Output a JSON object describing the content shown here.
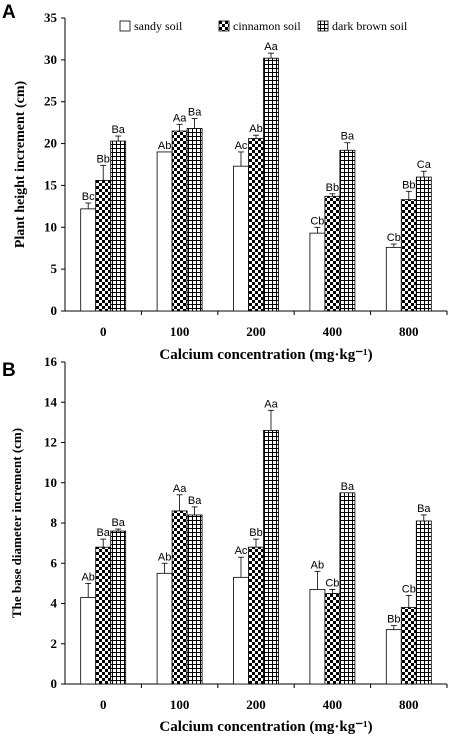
{
  "chart_data": [
    {
      "panel": "A",
      "type": "bar",
      "xlabel": "Calcium concentration (mg·kg⁻¹)",
      "ylabel": "Plant height increment (cm)",
      "categories": [
        "0",
        "100",
        "200",
        "400",
        "800"
      ],
      "ylim": [
        0,
        35
      ],
      "yticks": [
        0,
        5,
        10,
        15,
        20,
        25,
        30,
        35
      ],
      "legend_position": "top",
      "series": [
        {
          "name": "sandy soil",
          "pattern": "plain",
          "values": [
            12.2,
            19.0,
            17.3,
            9.3,
            7.6
          ],
          "errors": [
            0.7,
            0.0,
            1.7,
            0.7,
            0.4
          ],
          "labels": [
            "Bc",
            "Ab",
            "Ac",
            "Cb",
            "Cb"
          ]
        },
        {
          "name": "cinnamon soil",
          "pattern": "checker",
          "values": [
            15.6,
            21.5,
            20.6,
            13.7,
            13.3
          ],
          "errors": [
            1.8,
            0.8,
            0.4,
            0.3,
            1.0
          ],
          "labels": [
            "Bb",
            "Aa",
            "Ab",
            "Bb",
            "Bb"
          ]
        },
        {
          "name": "dark brown soil",
          "pattern": "grid",
          "values": [
            20.3,
            21.8,
            30.2,
            19.2,
            16.0
          ],
          "errors": [
            0.6,
            1.2,
            0.6,
            0.9,
            0.7
          ],
          "labels": [
            "Ba",
            "Ba",
            "Aa",
            "Ba",
            "Ca"
          ]
        }
      ]
    },
    {
      "panel": "B",
      "type": "bar",
      "xlabel": "Calcium concentration (mg·kg⁻¹)",
      "ylabel": "The base diameter increment (cm)",
      "categories": [
        "0",
        "100",
        "200",
        "400",
        "800"
      ],
      "ylim": [
        0,
        16
      ],
      "yticks": [
        0,
        2,
        4,
        6,
        8,
        10,
        12,
        14,
        16
      ],
      "legend_position": "none",
      "series": [
        {
          "name": "sandy soil",
          "pattern": "plain",
          "values": [
            4.3,
            5.5,
            5.3,
            4.7,
            2.7
          ],
          "errors": [
            0.7,
            0.5,
            1.0,
            0.9,
            0.2
          ],
          "labels": [
            "Ab",
            "Ab",
            "Ac",
            "Ab",
            "Bb"
          ]
        },
        {
          "name": "cinnamon soil",
          "pattern": "checker",
          "values": [
            6.8,
            8.6,
            6.8,
            4.5,
            3.8
          ],
          "errors": [
            0.4,
            0.8,
            0.4,
            0.2,
            0.6
          ],
          "labels": [
            "Ba",
            "Aa",
            "Bb",
            "Cb",
            "Cb"
          ]
        },
        {
          "name": "dark brown soil",
          "pattern": "grid",
          "values": [
            7.6,
            8.4,
            12.6,
            9.5,
            8.1
          ],
          "errors": [
            0.1,
            0.4,
            1.0,
            0.0,
            0.3
          ],
          "labels": [
            "Ba",
            "Ba",
            "Aa",
            "Ba",
            "Ba"
          ]
        }
      ]
    }
  ]
}
